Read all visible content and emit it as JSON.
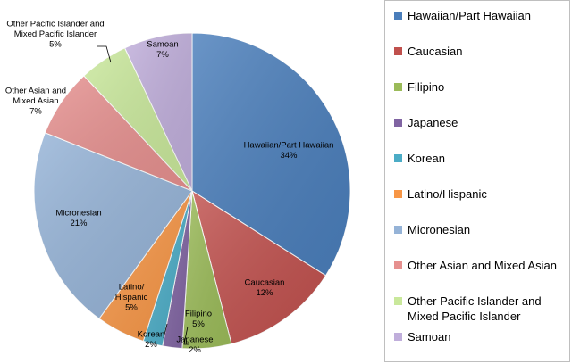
{
  "chart_data": {
    "type": "pie",
    "title": "",
    "legend_position": "right",
    "slices": [
      {
        "name": "Hawaiian/Part Hawaiian",
        "value": 34,
        "label_name": "Hawaiian/Part Hawaiian",
        "label_value": "34%",
        "color": "#4a7ebb"
      },
      {
        "name": "Caucasian",
        "value": 12,
        "label_name": "Caucasian",
        "label_value": "12%",
        "color": "#c0504d"
      },
      {
        "name": "Filipino",
        "value": 5,
        "label_name": "Filipino",
        "label_value": "5%",
        "color": "#9bbb59"
      },
      {
        "name": "Japanese",
        "value": 2,
        "label_name": "Japanese",
        "label_value": "2%",
        "color": "#8064a2"
      },
      {
        "name": "Korean",
        "value": 2,
        "label_name": "Korean",
        "label_value": "2%",
        "color": "#4bacc6"
      },
      {
        "name": "Latino/Hispanic",
        "value": 5,
        "label_name": "Latino/\nHispanic",
        "label_value": "5%",
        "color": "#f79646"
      },
      {
        "name": "Micronesian",
        "value": 21,
        "label_name": "Micronesian",
        "label_value": "21%",
        "color": "#95b3d7"
      },
      {
        "name": "Other Asian and Mixed Asian",
        "value": 7,
        "label_name": "Other Asian and\nMixed Asian",
        "label_value": "7%",
        "color": "#e6908f"
      },
      {
        "name": "Other Pacific Islander and Mixed Pacific Islander",
        "value": 5,
        "label_name": "Other Pacific Islander and\nMixed Pacific Islander",
        "label_value": "5%",
        "color": "#c9e89b"
      },
      {
        "name": "Samoan",
        "value": 7,
        "label_name": "Samoan",
        "label_value": "7%",
        "color": "#c0aedb"
      }
    ]
  },
  "legend": [
    "Hawaiian/Part Hawaiian",
    "Caucasian",
    "Filipino",
    "Japanese",
    "Korean",
    "Latino/Hispanic",
    "Micronesian",
    "Other Asian and Mixed Asian",
    "Other Pacific Islander and Mixed Pacific Islander",
    "Samoan"
  ]
}
